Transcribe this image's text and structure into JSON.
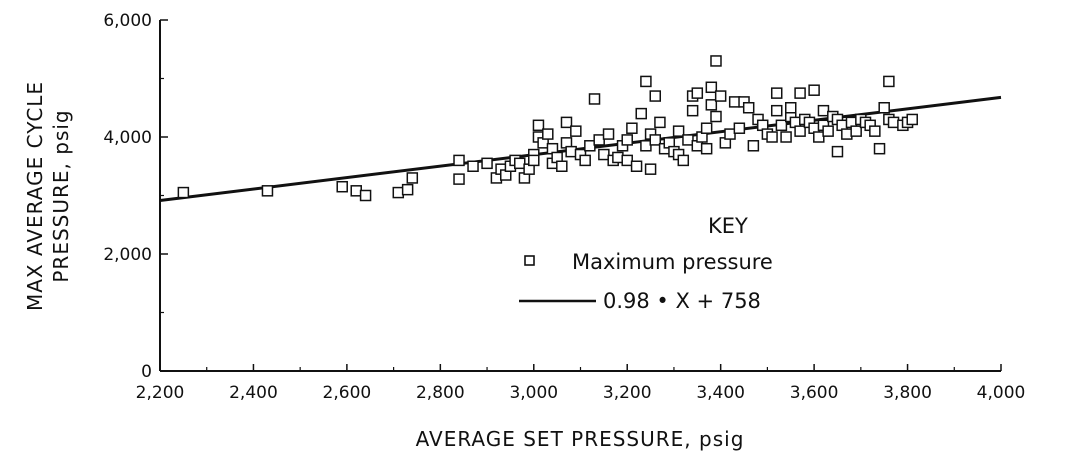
{
  "chart_data": {
    "type": "scatter",
    "xlabel": "AVERAGE SET PRESSURE, psig",
    "ylabel_line1": "MAX AVERAGE CYCLE",
    "ylabel_line2": "PRESSURE, psig",
    "xlim": [
      2200,
      4000
    ],
    "ylim": [
      0,
      6000
    ],
    "x_ticks": [
      2200,
      2400,
      2600,
      2800,
      3000,
      3200,
      3400,
      3600,
      3800,
      4000
    ],
    "x_tick_labels": [
      "2,200",
      "2,400",
      "2,600",
      "2,800",
      "3,000",
      "3,200",
      "3,400",
      "3,600",
      "3,800",
      "4,000"
    ],
    "y_ticks": [
      0,
      2000,
      4000,
      6000
    ],
    "y_tick_labels": [
      "0",
      "2,000",
      "4,000",
      "6,000"
    ],
    "grid": false,
    "legend": {
      "title": "KEY",
      "placement": "lower-right",
      "entries": [
        {
          "label": "Maximum pressure",
          "marker": "square"
        },
        {
          "label": "0.98 • X + 758",
          "marker": "line"
        }
      ]
    },
    "series": [
      {
        "marker": "square",
        "points": [
          [
            2250,
            3050
          ],
          [
            2430,
            3080
          ],
          [
            2590,
            3150
          ],
          [
            2620,
            3080
          ],
          [
            2640,
            3000
          ],
          [
            2710,
            3050
          ],
          [
            2730,
            3100
          ],
          [
            2740,
            3300
          ],
          [
            2840,
            3600
          ],
          [
            2840,
            3280
          ],
          [
            2870,
            3500
          ],
          [
            2900,
            3550
          ],
          [
            2920,
            3300
          ],
          [
            2930,
            3450
          ],
          [
            2940,
            3350
          ],
          [
            2950,
            3500
          ],
          [
            2960,
            3600
          ],
          [
            2970,
            3550
          ],
          [
            2980,
            3300
          ],
          [
            2990,
            3450
          ],
          [
            3000,
            3700
          ],
          [
            3000,
            3600
          ],
          [
            3010,
            4200
          ],
          [
            3010,
            4000
          ],
          [
            3020,
            3900
          ],
          [
            3030,
            4050
          ],
          [
            3040,
            3800
          ],
          [
            3040,
            3550
          ],
          [
            3050,
            3650
          ],
          [
            3060,
            3500
          ],
          [
            3070,
            4250
          ],
          [
            3070,
            3900
          ],
          [
            3080,
            3750
          ],
          [
            3090,
            4100
          ],
          [
            3100,
            3700
          ],
          [
            3110,
            3600
          ],
          [
            3120,
            3850
          ],
          [
            3130,
            4650
          ],
          [
            3140,
            3950
          ],
          [
            3150,
            3700
          ],
          [
            3160,
            4050
          ],
          [
            3170,
            3600
          ],
          [
            3180,
            3650
          ],
          [
            3190,
            3850
          ],
          [
            3200,
            3950
          ],
          [
            3200,
            3600
          ],
          [
            3210,
            4150
          ],
          [
            3220,
            3500
          ],
          [
            3230,
            4400
          ],
          [
            3240,
            4950
          ],
          [
            3240,
            3850
          ],
          [
            3250,
            3450
          ],
          [
            3250,
            4050
          ],
          [
            3260,
            4700
          ],
          [
            3260,
            3950
          ],
          [
            3270,
            4250
          ],
          [
            3280,
            3800
          ],
          [
            3290,
            3900
          ],
          [
            3300,
            3750
          ],
          [
            3310,
            4100
          ],
          [
            3310,
            3700
          ],
          [
            3320,
            3600
          ],
          [
            3330,
            3950
          ],
          [
            3340,
            4700
          ],
          [
            3340,
            4450
          ],
          [
            3350,
            4750
          ],
          [
            3350,
            3850
          ],
          [
            3360,
            4000
          ],
          [
            3370,
            3800
          ],
          [
            3370,
            4150
          ],
          [
            3380,
            4850
          ],
          [
            3380,
            4550
          ],
          [
            3390,
            5300
          ],
          [
            3390,
            4350
          ],
          [
            3400,
            4700
          ],
          [
            3410,
            3900
          ],
          [
            3420,
            4050
          ],
          [
            3430,
            4600
          ],
          [
            3440,
            4150
          ],
          [
            3450,
            4600
          ],
          [
            3460,
            4500
          ],
          [
            3470,
            3850
          ],
          [
            3480,
            4300
          ],
          [
            3490,
            4200
          ],
          [
            3500,
            4050
          ],
          [
            3510,
            4000
          ],
          [
            3520,
            4750
          ],
          [
            3520,
            4450
          ],
          [
            3530,
            4200
          ],
          [
            3540,
            4000
          ],
          [
            3550,
            4350
          ],
          [
            3550,
            4500
          ],
          [
            3560,
            4250
          ],
          [
            3570,
            4750
          ],
          [
            3570,
            4100
          ],
          [
            3580,
            4300
          ],
          [
            3590,
            4250
          ],
          [
            3600,
            4800
          ],
          [
            3600,
            4150
          ],
          [
            3610,
            4000
          ],
          [
            3620,
            4450
          ],
          [
            3620,
            4200
          ],
          [
            3630,
            4100
          ],
          [
            3640,
            4350
          ],
          [
            3650,
            4300
          ],
          [
            3650,
            3750
          ],
          [
            3660,
            4200
          ],
          [
            3670,
            4050
          ],
          [
            3680,
            4250
          ],
          [
            3690,
            4100
          ],
          [
            3700,
            4300
          ],
          [
            3710,
            4250
          ],
          [
            3720,
            4200
          ],
          [
            3730,
            4100
          ],
          [
            3740,
            3800
          ],
          [
            3750,
            4500
          ],
          [
            3760,
            4950
          ],
          [
            3760,
            4300
          ],
          [
            3770,
            4250
          ],
          [
            3790,
            4200
          ],
          [
            3800,
            4250
          ],
          [
            3810,
            4300
          ]
        ]
      },
      {
        "marker": "line",
        "slope": 0.98,
        "intercept": 758
      }
    ]
  }
}
